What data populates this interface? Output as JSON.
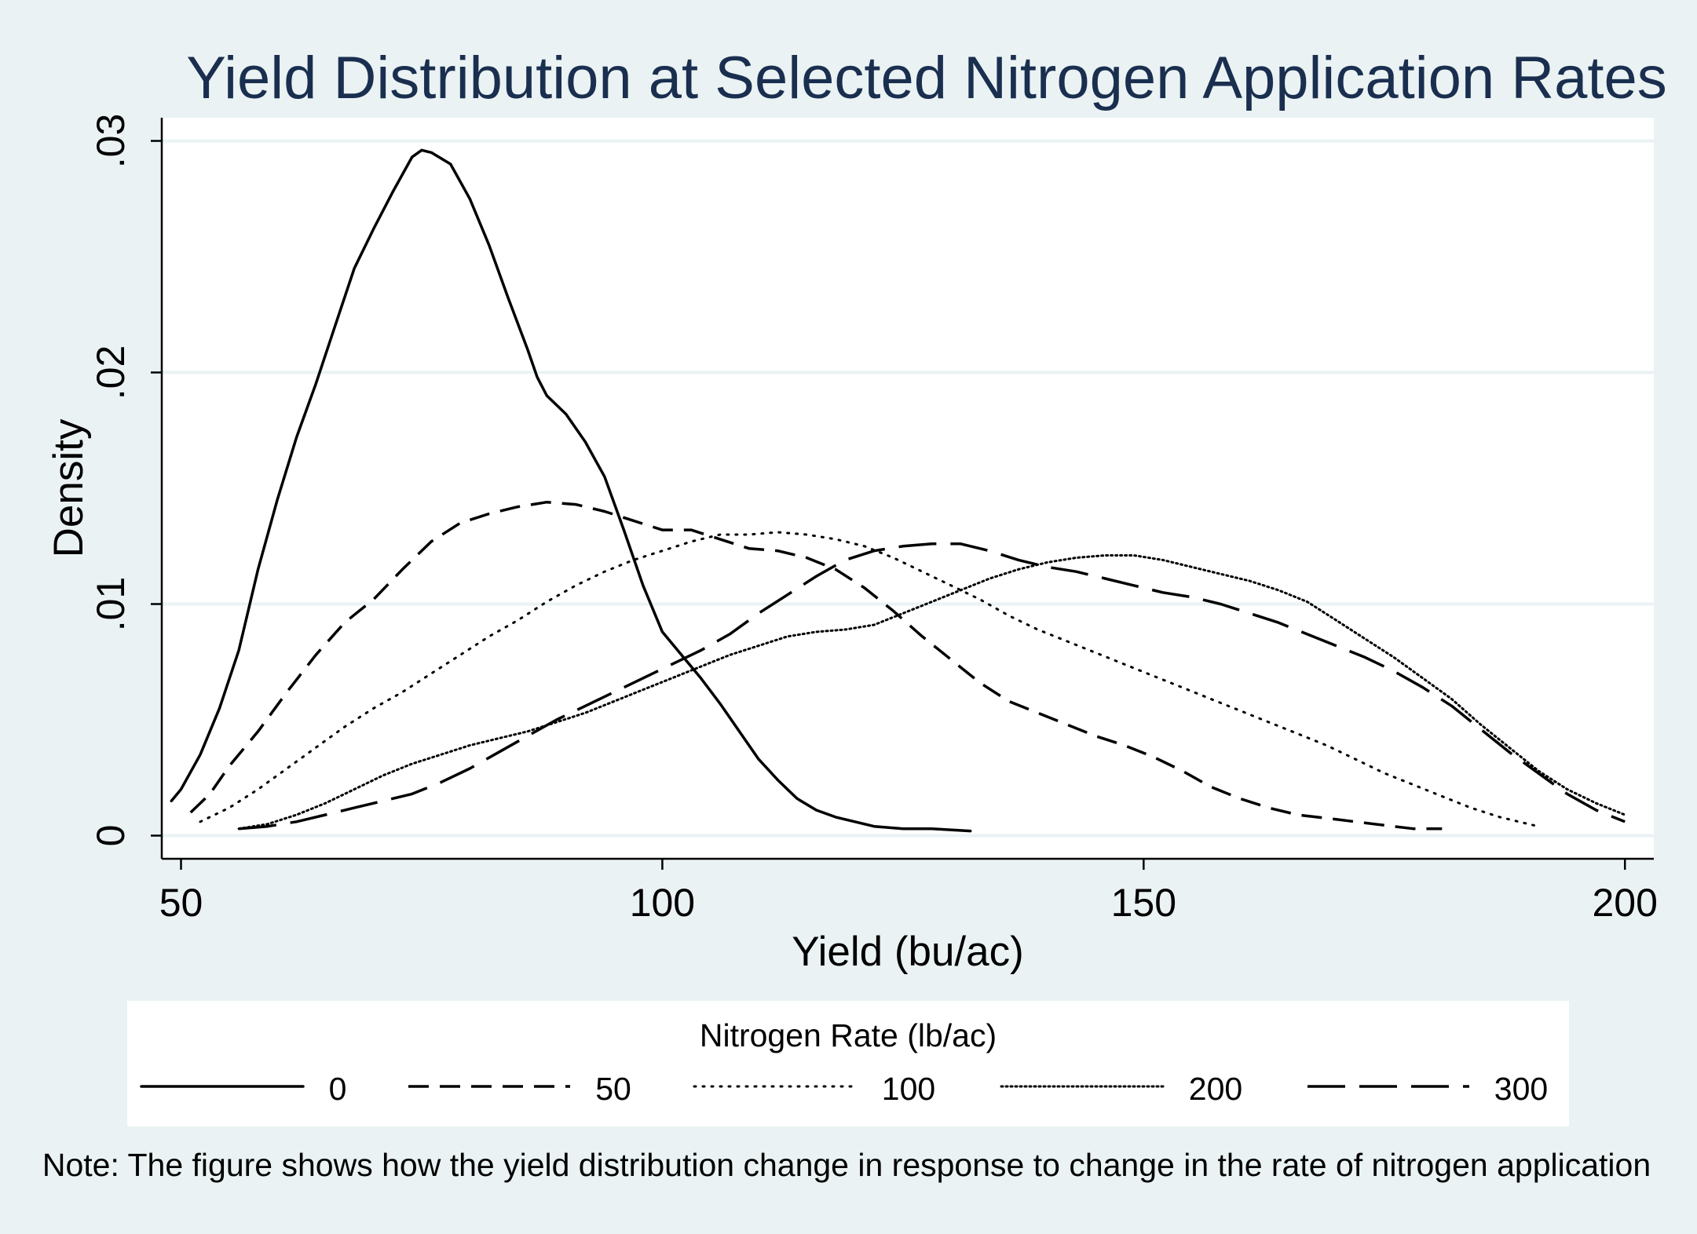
{
  "chart_data": {
    "type": "line",
    "title": "Yield Distribution at Selected Nitrogen Application Rates",
    "xlabel": "Yield (bu/ac)",
    "ylabel": "Density",
    "xlim": [
      48,
      203
    ],
    "ylim": [
      -0.001,
      0.031
    ],
    "x_ticks": [
      50,
      100,
      150,
      200
    ],
    "x_tick_labels": [
      "50",
      "100",
      "150",
      "200"
    ],
    "y_ticks": [
      0,
      0.01,
      0.02,
      0.03
    ],
    "y_tick_labels": [
      "0",
      ".01",
      ".02",
      ".03"
    ],
    "grid": "horizontal",
    "legend": {
      "title": "Nitrogen Rate (lb/ac)",
      "position": "bottom",
      "orientation": "horizontal"
    },
    "note": "Note: The figure shows how the yield distribution change in response to change in the rate of nitrogen application",
    "series": [
      {
        "name": "0",
        "style": "solid",
        "points": [
          [
            49,
            0.0015
          ],
          [
            50,
            0.002
          ],
          [
            52,
            0.0035
          ],
          [
            54,
            0.0055
          ],
          [
            56,
            0.008
          ],
          [
            58,
            0.0115
          ],
          [
            60,
            0.0145
          ],
          [
            62,
            0.0172
          ],
          [
            64,
            0.0195
          ],
          [
            66,
            0.022
          ],
          [
            68,
            0.0245
          ],
          [
            70,
            0.0262
          ],
          [
            72,
            0.0278
          ],
          [
            74,
            0.0293
          ],
          [
            75,
            0.0296
          ],
          [
            76,
            0.0295
          ],
          [
            78,
            0.029
          ],
          [
            80,
            0.0275
          ],
          [
            82,
            0.0255
          ],
          [
            84,
            0.0232
          ],
          [
            86,
            0.021
          ],
          [
            87,
            0.0198
          ],
          [
            88,
            0.019
          ],
          [
            90,
            0.0182
          ],
          [
            92,
            0.017
          ],
          [
            94,
            0.0155
          ],
          [
            96,
            0.0132
          ],
          [
            98,
            0.0108
          ],
          [
            100,
            0.0088
          ],
          [
            102,
            0.0078
          ],
          [
            104,
            0.0068
          ],
          [
            106,
            0.0057
          ],
          [
            108,
            0.0045
          ],
          [
            110,
            0.0033
          ],
          [
            112,
            0.0024
          ],
          [
            114,
            0.0016
          ],
          [
            116,
            0.0011
          ],
          [
            118,
            0.0008
          ],
          [
            120,
            0.0006
          ],
          [
            122,
            0.0004
          ],
          [
            125,
            0.0003
          ],
          [
            128,
            0.0003
          ],
          [
            132,
            0.0002
          ]
        ]
      },
      {
        "name": "50",
        "style": "dashed",
        "points": [
          [
            51,
            0.001
          ],
          [
            53,
            0.0018
          ],
          [
            55,
            0.003
          ],
          [
            58,
            0.0045
          ],
          [
            61,
            0.0062
          ],
          [
            64,
            0.0078
          ],
          [
            67,
            0.0092
          ],
          [
            70,
            0.0102
          ],
          [
            73,
            0.0115
          ],
          [
            76,
            0.0127
          ],
          [
            79,
            0.0135
          ],
          [
            82,
            0.0139
          ],
          [
            85,
            0.0142
          ],
          [
            88,
            0.0144
          ],
          [
            91,
            0.0143
          ],
          [
            94,
            0.014
          ],
          [
            97,
            0.0136
          ],
          [
            100,
            0.0132
          ],
          [
            103,
            0.0132
          ],
          [
            106,
            0.0128
          ],
          [
            109,
            0.0124
          ],
          [
            112,
            0.0123
          ],
          [
            115,
            0.012
          ],
          [
            118,
            0.0115
          ],
          [
            121,
            0.0107
          ],
          [
            124,
            0.0097
          ],
          [
            127,
            0.0086
          ],
          [
            130,
            0.0076
          ],
          [
            133,
            0.0066
          ],
          [
            136,
            0.0058
          ],
          [
            139,
            0.0053
          ],
          [
            142,
            0.0048
          ],
          [
            145,
            0.0043
          ],
          [
            148,
            0.0039
          ],
          [
            151,
            0.0034
          ],
          [
            154,
            0.0028
          ],
          [
            157,
            0.0021
          ],
          [
            160,
            0.0016
          ],
          [
            163,
            0.0012
          ],
          [
            166,
            0.0009
          ],
          [
            170,
            0.0007
          ],
          [
            174,
            0.0005
          ],
          [
            178,
            0.0003
          ],
          [
            181,
            0.0003
          ]
        ]
      },
      {
        "name": "100",
        "style": "dotted",
        "points": [
          [
            52,
            0.0006
          ],
          [
            55,
            0.0012
          ],
          [
            58,
            0.002
          ],
          [
            61,
            0.0029
          ],
          [
            64,
            0.0038
          ],
          [
            67,
            0.0047
          ],
          [
            70,
            0.0055
          ],
          [
            73,
            0.0062
          ],
          [
            76,
            0.007
          ],
          [
            79,
            0.0078
          ],
          [
            82,
            0.0086
          ],
          [
            85,
            0.0093
          ],
          [
            88,
            0.0101
          ],
          [
            91,
            0.0108
          ],
          [
            94,
            0.0114
          ],
          [
            97,
            0.0119
          ],
          [
            100,
            0.0123
          ],
          [
            103,
            0.0127
          ],
          [
            106,
            0.013
          ],
          [
            109,
            0.013
          ],
          [
            112,
            0.0131
          ],
          [
            115,
            0.013
          ],
          [
            118,
            0.0128
          ],
          [
            121,
            0.0125
          ],
          [
            124,
            0.012
          ],
          [
            127,
            0.0114
          ],
          [
            130,
            0.0108
          ],
          [
            133,
            0.0102
          ],
          [
            136,
            0.0095
          ],
          [
            139,
            0.0089
          ],
          [
            142,
            0.0084
          ],
          [
            145,
            0.0079
          ],
          [
            148,
            0.0074
          ],
          [
            151,
            0.0069
          ],
          [
            154,
            0.0064
          ],
          [
            157,
            0.0059
          ],
          [
            160,
            0.0054
          ],
          [
            163,
            0.0049
          ],
          [
            166,
            0.0044
          ],
          [
            169,
            0.0039
          ],
          [
            172,
            0.0033
          ],
          [
            175,
            0.0027
          ],
          [
            178,
            0.0022
          ],
          [
            181,
            0.0017
          ],
          [
            184,
            0.0012
          ],
          [
            187,
            0.0008
          ],
          [
            190,
            0.0005
          ],
          [
            191,
            0.0004
          ]
        ]
      },
      {
        "name": "200",
        "style": "densedot",
        "points": [
          [
            56,
            0.0003
          ],
          [
            59,
            0.0005
          ],
          [
            62,
            0.0009
          ],
          [
            65,
            0.0014
          ],
          [
            68,
            0.002
          ],
          [
            71,
            0.0026
          ],
          [
            74,
            0.0031
          ],
          [
            77,
            0.0035
          ],
          [
            80,
            0.0039
          ],
          [
            83,
            0.0042
          ],
          [
            86,
            0.0045
          ],
          [
            89,
            0.0049
          ],
          [
            92,
            0.0053
          ],
          [
            95,
            0.0058
          ],
          [
            98,
            0.0063
          ],
          [
            101,
            0.0068
          ],
          [
            104,
            0.0073
          ],
          [
            107,
            0.0078
          ],
          [
            110,
            0.0082
          ],
          [
            113,
            0.0086
          ],
          [
            116,
            0.0088
          ],
          [
            119,
            0.0089
          ],
          [
            122,
            0.0091
          ],
          [
            125,
            0.0096
          ],
          [
            128,
            0.0101
          ],
          [
            131,
            0.0106
          ],
          [
            134,
            0.0111
          ],
          [
            137,
            0.0115
          ],
          [
            140,
            0.0118
          ],
          [
            143,
            0.012
          ],
          [
            146,
            0.0121
          ],
          [
            149,
            0.0121
          ],
          [
            152,
            0.0119
          ],
          [
            155,
            0.0116
          ],
          [
            158,
            0.0113
          ],
          [
            161,
            0.011
          ],
          [
            164,
            0.0106
          ],
          [
            167,
            0.0101
          ],
          [
            170,
            0.0093
          ],
          [
            173,
            0.0085
          ],
          [
            176,
            0.0077
          ],
          [
            179,
            0.0068
          ],
          [
            182,
            0.0059
          ],
          [
            185,
            0.0048
          ],
          [
            188,
            0.0038
          ],
          [
            191,
            0.0028
          ],
          [
            194,
            0.002
          ],
          [
            197,
            0.0014
          ],
          [
            200,
            0.0009
          ]
        ]
      },
      {
        "name": "300",
        "style": "longdash",
        "points": [
          [
            56,
            0.0003
          ],
          [
            59,
            0.0004
          ],
          [
            62,
            0.0006
          ],
          [
            65,
            0.0009
          ],
          [
            68,
            0.0012
          ],
          [
            71,
            0.0015
          ],
          [
            74,
            0.0018
          ],
          [
            77,
            0.0023
          ],
          [
            80,
            0.0029
          ],
          [
            83,
            0.0036
          ],
          [
            86,
            0.0043
          ],
          [
            89,
            0.005
          ],
          [
            92,
            0.0056
          ],
          [
            95,
            0.0062
          ],
          [
            98,
            0.0068
          ],
          [
            101,
            0.0074
          ],
          [
            104,
            0.008
          ],
          [
            107,
            0.0087
          ],
          [
            110,
            0.0096
          ],
          [
            113,
            0.0104
          ],
          [
            116,
            0.0112
          ],
          [
            119,
            0.0119
          ],
          [
            122,
            0.0123
          ],
          [
            125,
            0.0125
          ],
          [
            128,
            0.0126
          ],
          [
            131,
            0.0126
          ],
          [
            134,
            0.0123
          ],
          [
            137,
            0.0119
          ],
          [
            140,
            0.0116
          ],
          [
            143,
            0.0114
          ],
          [
            146,
            0.0111
          ],
          [
            149,
            0.0108
          ],
          [
            152,
            0.0105
          ],
          [
            155,
            0.0103
          ],
          [
            158,
            0.01
          ],
          [
            161,
            0.0096
          ],
          [
            164,
            0.0092
          ],
          [
            167,
            0.0087
          ],
          [
            170,
            0.0082
          ],
          [
            173,
            0.0077
          ],
          [
            176,
            0.0071
          ],
          [
            179,
            0.0064
          ],
          [
            182,
            0.0056
          ],
          [
            185,
            0.0046
          ],
          [
            188,
            0.0036
          ],
          [
            191,
            0.0027
          ],
          [
            194,
            0.0018
          ],
          [
            197,
            0.0011
          ],
          [
            200,
            0.0006
          ]
        ]
      }
    ]
  }
}
